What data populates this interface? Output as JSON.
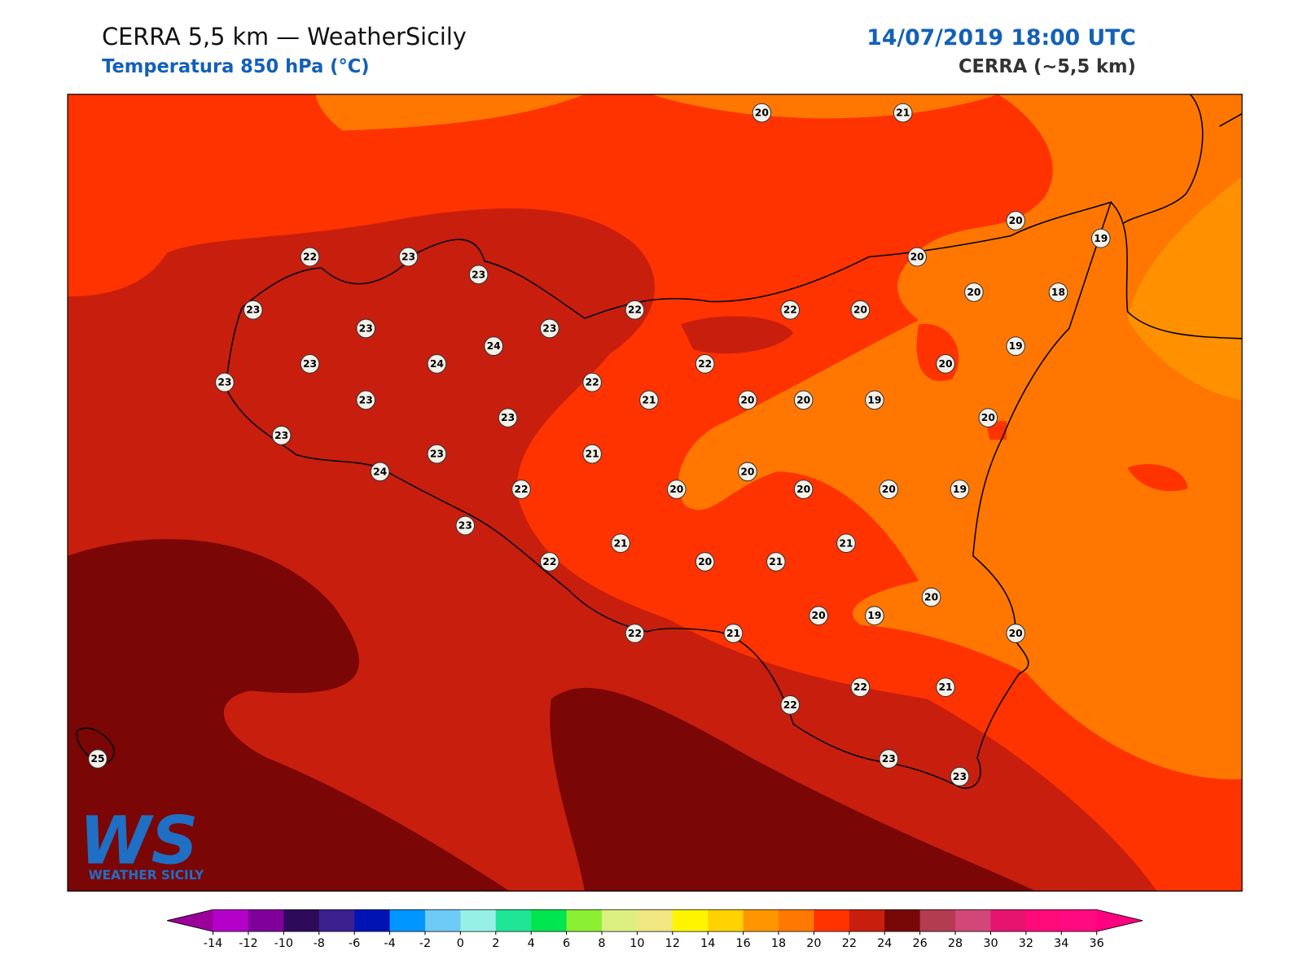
{
  "header": {
    "title": "CERRA 5,5 km — WeatherSicily",
    "subtitle": "Temperatura 850 hPa (°C)",
    "datetime": "14/07/2019 18:00 UTC",
    "model": "CERRA (~5,5 km)"
  },
  "stations": [
    {
      "value": 20
    },
    {
      "value": 21
    },
    {
      "value": 20
    },
    {
      "value": 19
    },
    {
      "value": 20
    },
    {
      "value": 22
    },
    {
      "value": 23
    },
    {
      "value": 23
    },
    {
      "value": 20
    },
    {
      "value": 18
    },
    {
      "value": 23
    },
    {
      "value": 22
    },
    {
      "value": 22
    },
    {
      "value": 20
    },
    {
      "value": 23
    },
    {
      "value": 23
    },
    {
      "value": 24
    },
    {
      "value": 19
    },
    {
      "value": 23
    },
    {
      "value": 24
    },
    {
      "value": 22
    },
    {
      "value": 20
    },
    {
      "value": 23
    },
    {
      "value": 22
    },
    {
      "value": 23
    },
    {
      "value": 21
    },
    {
      "value": 20
    },
    {
      "value": 20
    },
    {
      "value": 19
    },
    {
      "value": 23
    },
    {
      "value": 20
    },
    {
      "value": 23
    },
    {
      "value": 23
    },
    {
      "value": 21
    },
    {
      "value": 20
    },
    {
      "value": 24
    },
    {
      "value": 22
    },
    {
      "value": 20
    },
    {
      "value": 20
    },
    {
      "value": 20
    },
    {
      "value": 19
    },
    {
      "value": 23
    },
    {
      "value": 21
    },
    {
      "value": 21
    },
    {
      "value": 22
    },
    {
      "value": 20
    },
    {
      "value": 21
    },
    {
      "value": 20
    },
    {
      "value": 20
    },
    {
      "value": 19
    },
    {
      "value": 22
    },
    {
      "value": 21
    },
    {
      "value": 20
    },
    {
      "value": 22
    },
    {
      "value": 21
    },
    {
      "value": 22
    },
    {
      "value": 23
    },
    {
      "value": 23
    },
    {
      "value": 25
    }
  ],
  "colorbar": {
    "ticks": [
      -14,
      -12,
      -10,
      -8,
      -6,
      -4,
      -2,
      0,
      2,
      4,
      6,
      8,
      10,
      12,
      14,
      16,
      18,
      20,
      22,
      24,
      26,
      28,
      30,
      32,
      34,
      36
    ],
    "colors": [
      "#b400c8",
      "#80009c",
      "#2d0a5a",
      "#3c2090",
      "#0014b4",
      "#0096ff",
      "#6ecbf5",
      "#96f0e6",
      "#1ee696",
      "#00e650",
      "#8cf032",
      "#dcf082",
      "#f0e682",
      "#fff500",
      "#ffd200",
      "#ff9600",
      "#ff7800",
      "#ff3200",
      "#c81e0e",
      "#780808",
      "#b43c50",
      "#d24678",
      "#e6146e",
      "#ff0a78",
      "#ff0a80"
    ],
    "extend_colors": [
      "#9b009b",
      "#ff0080"
    ]
  },
  "logo": {
    "mark": "WS",
    "text": "WEATHER SICILY"
  }
}
